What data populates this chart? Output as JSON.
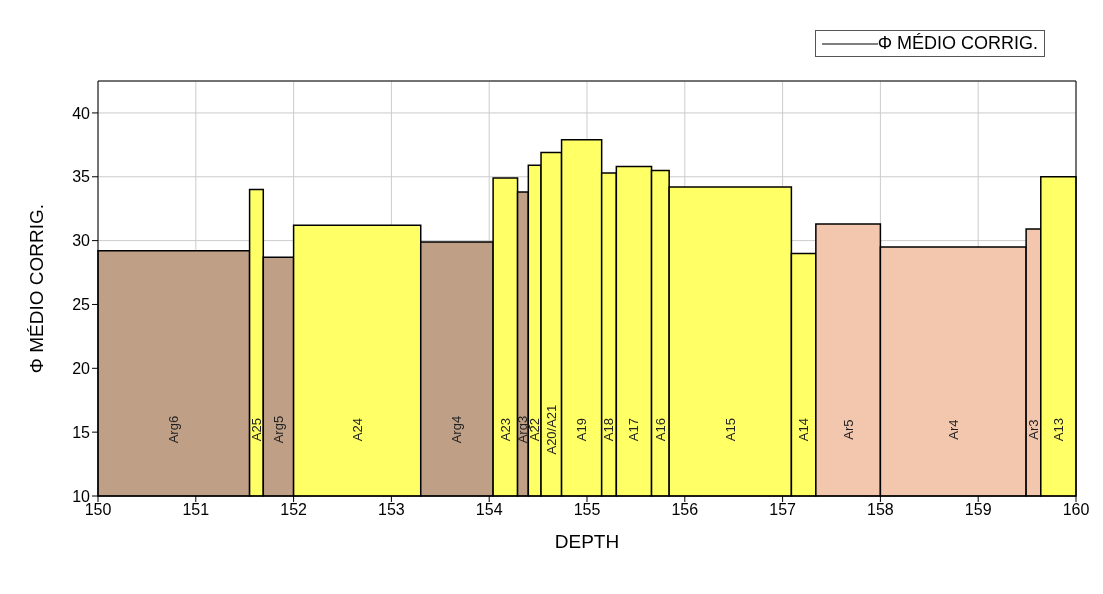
{
  "chart_data": {
    "type": "histogram",
    "xlabel": "DEPTH",
    "ylabel": "Φ MÉDIO CORRIG.",
    "bins": [
      150,
      151.55,
      151.69,
      152.0,
      153.3,
      154.04,
      154.29,
      154.4,
      154.53,
      154.74,
      155.15,
      155.3,
      155.66,
      155.84,
      157.09,
      157.34,
      158.0,
      159.49,
      159.64,
      160
    ],
    "series": [
      {
        "name": "Φ MÉDIO CORRIG.",
        "color": "#000000",
        "values": [
          29.2,
          34.0,
          28.7,
          31.2,
          29.9,
          34.9,
          33.8,
          35.9,
          36.9,
          37.9,
          35.3,
          35.8,
          35.5,
          34.2,
          29.0,
          31.3,
          29.5,
          30.9,
          35.0
        ]
      }
    ],
    "colors": [
      "#bf9f86",
      "#ffff66",
      "#bf9f86",
      "#ffff66",
      "#bf9f86",
      "#ffff66",
      "#bf9f86",
      "#ffff66",
      "#ffff66",
      "#ffff66",
      "#ffff66",
      "#ffff66",
      "#ffff66",
      "#ffff66",
      "#ffff66",
      "#f2c7ad",
      "#f2c7ad",
      "#f2c7ad",
      "#ffff66"
    ],
    "annotations": [
      "Arg6",
      "A25",
      "Arg5",
      "A24",
      "Arg4",
      "A23",
      "Arg3",
      "A22",
      "A20/A21",
      "A19",
      "A18",
      "A17",
      "A16",
      "A15",
      "A14",
      "Ar5",
      "Ar4",
      "Ar3",
      "A13"
    ],
    "xlim": [
      150,
      160
    ],
    "xticks": [
      150,
      151,
      152,
      153,
      154,
      155,
      156,
      157,
      158,
      159,
      160
    ],
    "ylim": [
      10,
      42.5
    ],
    "yticks": [
      10,
      15,
      20,
      25,
      30,
      35,
      40
    ],
    "grid": true,
    "legend": "top right"
  }
}
